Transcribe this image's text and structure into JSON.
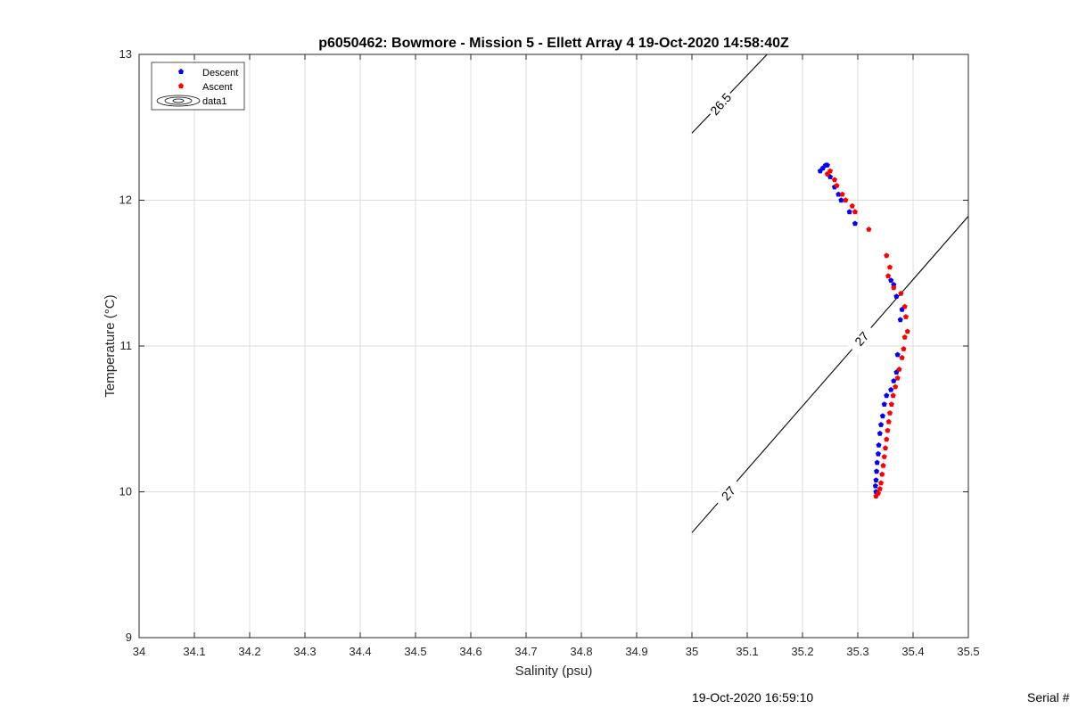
{
  "chart_data": {
    "type": "scatter",
    "title": "p6050462: Bowmore - Mission 5 - Ellett Array 4 19-Oct-2020 14:58:40Z",
    "xlabel": "Salinity (psu)",
    "ylabel": "Temperature (°C)",
    "xlim": [
      34,
      35.5
    ],
    "ylim": [
      9,
      13
    ],
    "xticks": [
      "34",
      "34.1",
      "34.2",
      "34.3",
      "34.4",
      "34.5",
      "34.6",
      "34.7",
      "34.8",
      "34.9",
      "35",
      "35.1",
      "35.2",
      "35.3",
      "35.4",
      "35.5"
    ],
    "yticks": [
      "9",
      "10",
      "11",
      "12",
      "13"
    ],
    "grid": true,
    "legend_position": "top-left",
    "legend": [
      "Descent",
      "Ascent",
      "data1"
    ],
    "colors": {
      "descent": "#0000ff",
      "ascent": "#ff0000",
      "contour": "#000000"
    },
    "series": [
      {
        "name": "Descent",
        "color": "#0000ff",
        "points": [
          [
            35.232,
            12.2
          ],
          [
            35.237,
            12.22
          ],
          [
            35.242,
            12.24
          ],
          [
            35.245,
            12.24
          ],
          [
            35.25,
            12.16
          ],
          [
            35.258,
            12.09
          ],
          [
            35.265,
            12.04
          ],
          [
            35.27,
            12.0
          ],
          [
            35.285,
            11.92
          ],
          [
            35.295,
            11.84
          ],
          [
            35.36,
            11.45
          ],
          [
            35.365,
            11.42
          ],
          [
            35.37,
            11.34
          ],
          [
            35.38,
            11.25
          ],
          [
            35.377,
            11.18
          ],
          [
            35.372,
            10.94
          ],
          [
            35.37,
            10.82
          ],
          [
            35.365,
            10.76
          ],
          [
            35.36,
            10.7
          ],
          [
            35.352,
            10.66
          ],
          [
            35.348,
            10.6
          ],
          [
            35.345,
            10.52
          ],
          [
            35.342,
            10.46
          ],
          [
            35.34,
            10.4
          ],
          [
            35.338,
            10.32
          ],
          [
            35.337,
            10.26
          ],
          [
            35.335,
            10.2
          ],
          [
            35.334,
            10.14
          ],
          [
            35.333,
            10.08
          ],
          [
            35.332,
            10.04
          ],
          [
            35.333,
            10.0
          ]
        ]
      },
      {
        "name": "Ascent",
        "color": "#ff0000",
        "points": [
          [
            35.245,
            12.18
          ],
          [
            35.25,
            12.2
          ],
          [
            35.258,
            12.14
          ],
          [
            35.262,
            12.1
          ],
          [
            35.272,
            12.04
          ],
          [
            35.278,
            12.0
          ],
          [
            35.29,
            11.96
          ],
          [
            35.295,
            11.92
          ],
          [
            35.32,
            11.8
          ],
          [
            35.352,
            11.62
          ],
          [
            35.358,
            11.54
          ],
          [
            35.355,
            11.48
          ],
          [
            35.365,
            11.4
          ],
          [
            35.378,
            11.36
          ],
          [
            35.385,
            11.27
          ],
          [
            35.387,
            11.2
          ],
          [
            35.39,
            11.1
          ],
          [
            35.385,
            11.06
          ],
          [
            35.383,
            10.98
          ],
          [
            35.38,
            10.92
          ],
          [
            35.375,
            10.84
          ],
          [
            35.372,
            10.78
          ],
          [
            35.368,
            10.72
          ],
          [
            35.364,
            10.66
          ],
          [
            35.361,
            10.6
          ],
          [
            35.358,
            10.54
          ],
          [
            35.356,
            10.48
          ],
          [
            35.354,
            10.42
          ],
          [
            35.352,
            10.36
          ],
          [
            35.35,
            10.3
          ],
          [
            35.348,
            10.24
          ],
          [
            35.346,
            10.18
          ],
          [
            35.344,
            10.12
          ],
          [
            35.342,
            10.06
          ],
          [
            35.34,
            10.02
          ],
          [
            35.337,
            9.99
          ],
          [
            35.333,
            9.97
          ]
        ]
      }
    ],
    "contours": [
      {
        "label": "26.5",
        "points": [
          [
            35.0,
            12.46
          ],
          [
            35.136,
            13.0
          ]
        ],
        "label_at": [
          35.052,
          12.66
        ]
      },
      {
        "label": "27",
        "points": [
          [
            35.0,
            9.72
          ],
          [
            35.5,
            11.89
          ]
        ],
        "label_at": [
          35.307,
          11.05
        ]
      },
      {
        "label": "27",
        "label_at": [
          35.066,
          9.99
        ]
      }
    ]
  },
  "footer": {
    "timestamp": "19-Oct-2020 16:59:10",
    "serial": "Serial #"
  }
}
